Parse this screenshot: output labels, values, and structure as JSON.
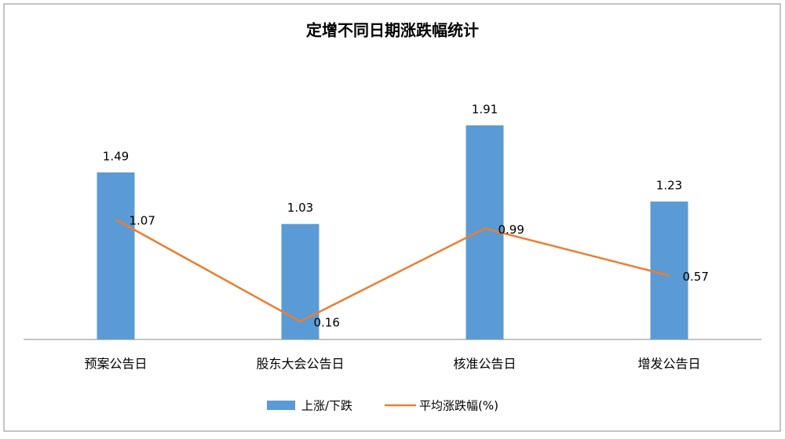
{
  "chart_data": {
    "type": "bar",
    "title": "定增不同日期涨跌幅统计",
    "categories": [
      "预案公告日",
      "股东大会公告日",
      "核准公告日",
      "增发公告日"
    ],
    "series": [
      {
        "name": "上涨/下跌",
        "type": "bar",
        "color": "#5b9bd5",
        "values": [
          1.49,
          1.03,
          1.91,
          1.23
        ]
      },
      {
        "name": "平均涨跌幅(%)",
        "type": "line",
        "color": "#ed7d31",
        "values": [
          1.07,
          0.16,
          0.99,
          0.57
        ]
      }
    ],
    "ylim": [
      0,
      2.5
    ],
    "legend": "bottom"
  }
}
